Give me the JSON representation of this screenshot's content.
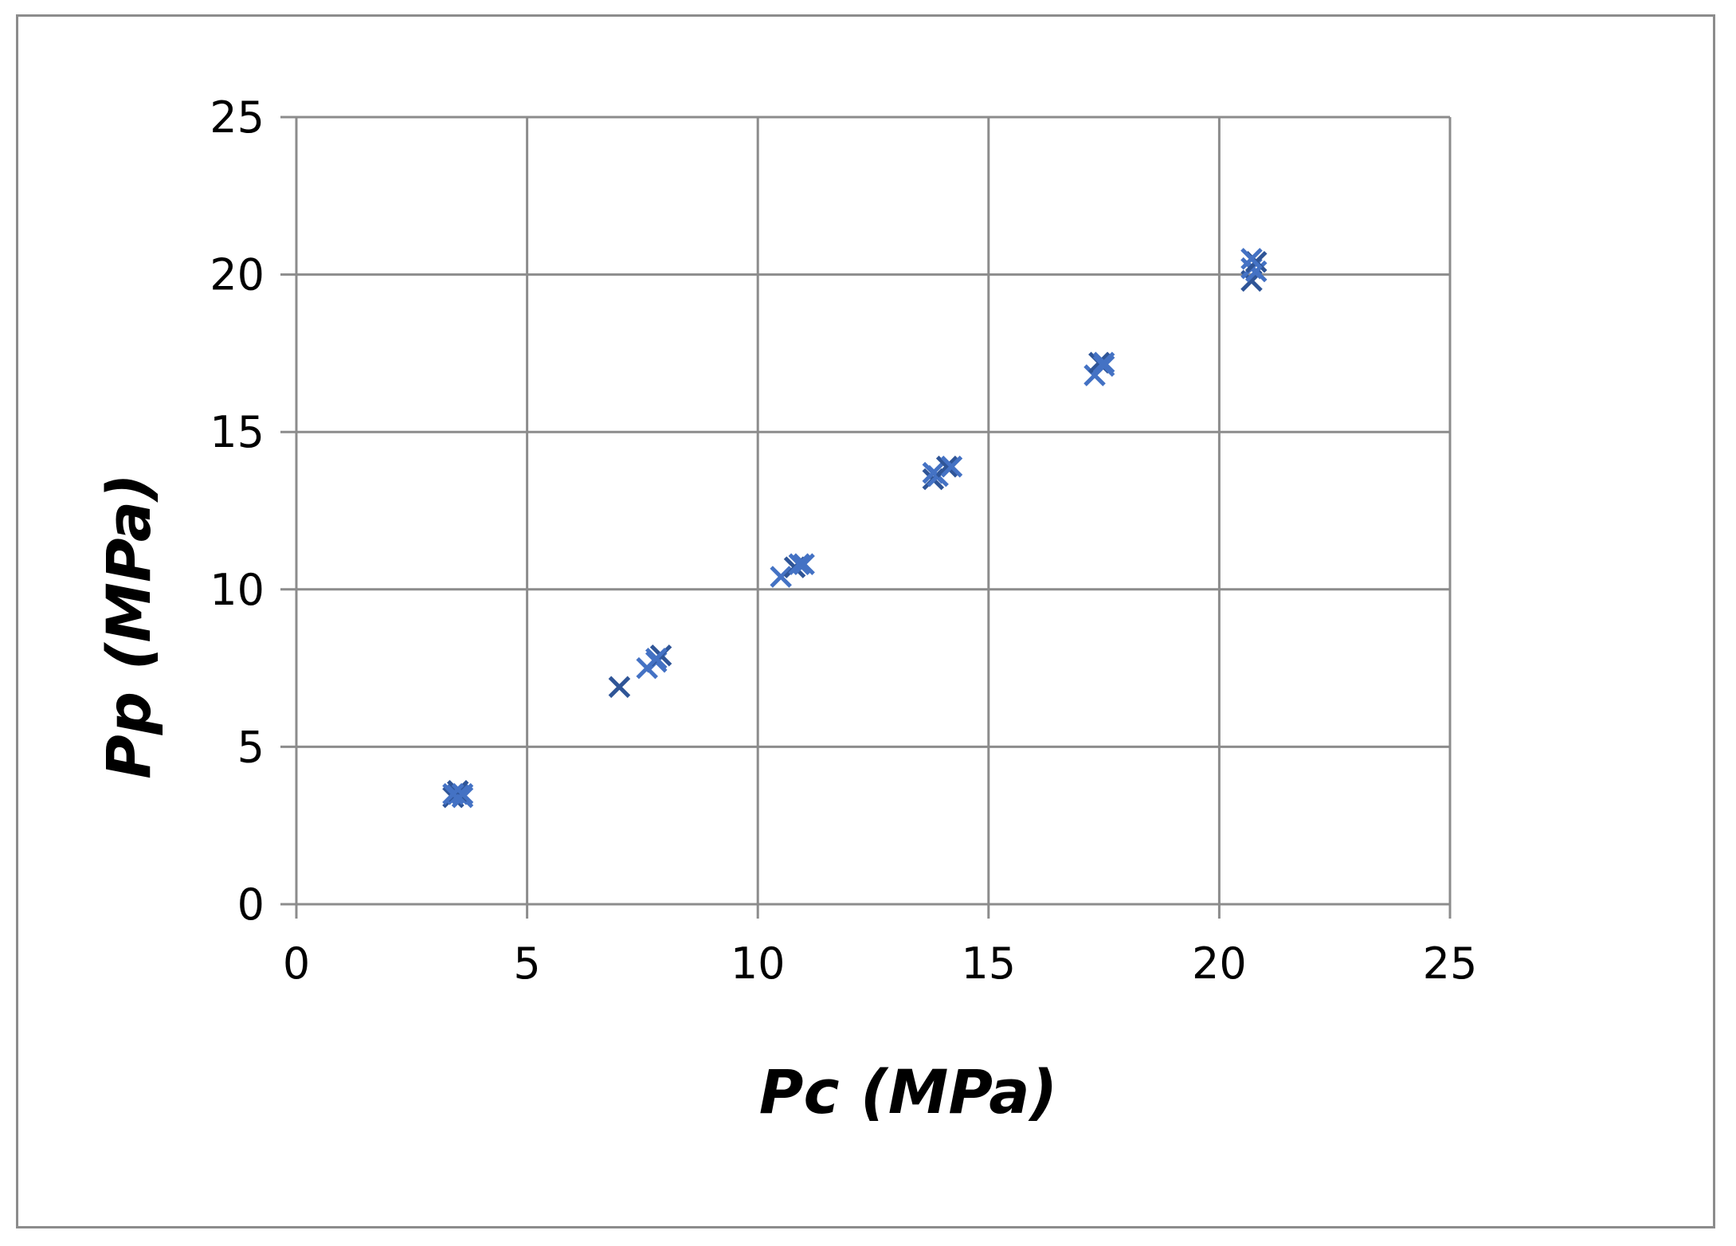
{
  "chart_data": {
    "type": "scatter",
    "title": "",
    "xlabel": "Pc (MPa)",
    "ylabel": "Pp (MPa)",
    "xlim": [
      0,
      25
    ],
    "ylim": [
      0,
      25
    ],
    "x_ticks": [
      "0",
      "5",
      "10",
      "15",
      "20",
      "25"
    ],
    "y_ticks": [
      "0",
      "5",
      "10",
      "15",
      "20",
      "25"
    ],
    "grid": true,
    "legend": "none",
    "marker": "x",
    "series": [
      {
        "color": "#4472C4",
        "points": [
          {
            "x": 3.4,
            "y": 3.4
          },
          {
            "x": 3.5,
            "y": 3.5
          },
          {
            "x": 3.6,
            "y": 3.4
          },
          {
            "x": 3.5,
            "y": 3.6
          },
          {
            "x": 3.4,
            "y": 3.5
          },
          {
            "x": 3.6,
            "y": 3.5
          },
          {
            "x": 7.0,
            "y": 6.9
          },
          {
            "x": 7.6,
            "y": 7.5
          },
          {
            "x": 7.8,
            "y": 7.7
          },
          {
            "x": 7.9,
            "y": 7.9
          },
          {
            "x": 7.8,
            "y": 7.8
          },
          {
            "x": 10.5,
            "y": 10.4
          },
          {
            "x": 10.8,
            "y": 10.7
          },
          {
            "x": 10.9,
            "y": 10.8
          },
          {
            "x": 11.0,
            "y": 10.8
          },
          {
            "x": 13.8,
            "y": 13.5
          },
          {
            "x": 13.9,
            "y": 13.6
          },
          {
            "x": 13.8,
            "y": 13.7
          },
          {
            "x": 14.1,
            "y": 13.9
          },
          {
            "x": 14.2,
            "y": 13.9
          },
          {
            "x": 17.3,
            "y": 16.8
          },
          {
            "x": 17.4,
            "y": 17.2
          },
          {
            "x": 17.5,
            "y": 17.1
          },
          {
            "x": 17.5,
            "y": 17.2
          },
          {
            "x": 20.7,
            "y": 19.8
          },
          {
            "x": 20.8,
            "y": 20.1
          },
          {
            "x": 20.7,
            "y": 20.2
          },
          {
            "x": 20.8,
            "y": 20.4
          },
          {
            "x": 20.7,
            "y": 20.5
          }
        ]
      }
    ]
  },
  "colors": {
    "marker": "#4472C4",
    "marker_dark": "#2F5597",
    "grid": "#8c8c8c",
    "frame": "#8c8c8c"
  }
}
